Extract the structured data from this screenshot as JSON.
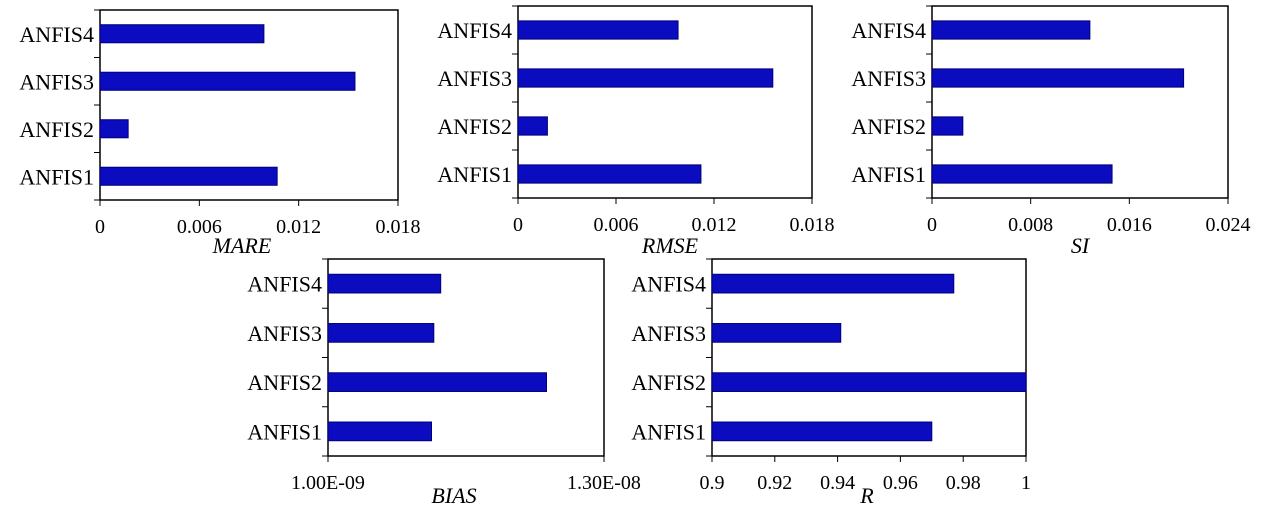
{
  "bar_color": "#0b0bbf",
  "chart_data": [
    {
      "type": "bar",
      "orientation": "horizontal",
      "categories": [
        "ANFIS1",
        "ANFIS2",
        "ANFIS3",
        "ANFIS4"
      ],
      "values": [
        0.0107,
        0.0017,
        0.0154,
        0.0099
      ],
      "xlabel": "MARE",
      "xlim": [
        0,
        0.018
      ],
      "xticks": [
        "0",
        "0.006",
        "0.012",
        "0.018"
      ]
    },
    {
      "type": "bar",
      "orientation": "horizontal",
      "categories": [
        "ANFIS1",
        "ANFIS2",
        "ANFIS3",
        "ANFIS4"
      ],
      "values": [
        0.0112,
        0.0018,
        0.0156,
        0.0098
      ],
      "xlabel": "RMSE",
      "xlim": [
        0,
        0.018
      ],
      "xticks": [
        "0",
        "0.006",
        "0.012",
        "0.018"
      ]
    },
    {
      "type": "bar",
      "orientation": "horizontal",
      "categories": [
        "ANFIS1",
        "ANFIS2",
        "ANFIS3",
        "ANFIS4"
      ],
      "values": [
        0.0146,
        0.0025,
        0.0204,
        0.0128
      ],
      "xlabel": "SI",
      "xlim": [
        0,
        0.024
      ],
      "xticks": [
        "0",
        "0.008",
        "0.016",
        "0.024"
      ]
    },
    {
      "type": "bar",
      "orientation": "horizontal",
      "categories": [
        "ANFIS1",
        "ANFIS2",
        "ANFIS3",
        "ANFIS4"
      ],
      "values": [
        5.5e-09,
        1.05e-08,
        5.6e-09,
        5.9e-09
      ],
      "xlabel": "BIAS",
      "xlim": [
        1e-09,
        1.3e-08
      ],
      "xticks": [
        "1.00E-09",
        "1.30E-08"
      ]
    },
    {
      "type": "bar",
      "orientation": "horizontal",
      "categories": [
        "ANFIS1",
        "ANFIS2",
        "ANFIS3",
        "ANFIS4"
      ],
      "values": [
        0.97,
        1.0,
        0.941,
        0.977
      ],
      "xlabel": "R",
      "xlim": [
        0.9,
        1.0
      ],
      "xticks": [
        "0.9",
        "0.92",
        "0.94",
        "0.96",
        "0.98",
        "1"
      ]
    }
  ]
}
